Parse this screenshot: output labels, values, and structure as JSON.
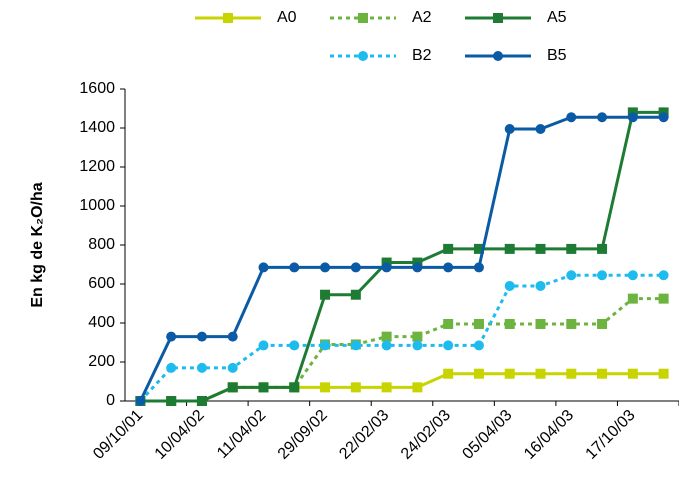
{
  "chart_data": {
    "type": "line",
    "y_label": "En kg de K₂O/ha",
    "categories": [
      "09/10/01",
      null,
      "10/04/02",
      null,
      "11/04/02",
      null,
      "29/09/02",
      null,
      "22/02/03",
      null,
      "24/02/03",
      null,
      "05/04/03",
      null,
      "16/04/03",
      null,
      "17/10/03",
      null
    ],
    "ylim": [
      0,
      1600
    ],
    "yticks": [
      0,
      200,
      400,
      600,
      800,
      1000,
      1200,
      1400,
      1600
    ],
    "series": [
      {
        "name": "A0",
        "color": "#c8d400",
        "marker": "square",
        "dashed": false,
        "values": [
          0,
          0,
          0,
          70,
          70,
          70,
          70,
          70,
          70,
          70,
          140,
          140,
          140,
          140,
          140,
          140,
          140,
          140
        ]
      },
      {
        "name": "A2",
        "color": "#6db33f",
        "marker": "square",
        "dashed": true,
        "values": [
          0,
          0,
          0,
          70,
          70,
          70,
          290,
          290,
          330,
          330,
          395,
          395,
          395,
          395,
          395,
          395,
          525,
          525
        ]
      },
      {
        "name": "A5",
        "color": "#1e7b34",
        "marker": "square",
        "dashed": false,
        "values": [
          0,
          0,
          0,
          70,
          70,
          70,
          545,
          545,
          710,
          710,
          780,
          780,
          780,
          780,
          780,
          780,
          1480,
          1480
        ]
      },
      {
        "name": "B2",
        "color": "#1ebbee",
        "marker": "circle",
        "dashed": true,
        "values": [
          0,
          170,
          170,
          170,
          285,
          285,
          285,
          285,
          285,
          285,
          285,
          285,
          590,
          590,
          645,
          645,
          645,
          645
        ]
      },
      {
        "name": "B5",
        "color": "#0b5aa5",
        "marker": "circle",
        "dashed": false,
        "values": [
          0,
          330,
          330,
          330,
          685,
          685,
          685,
          685,
          685,
          685,
          685,
          685,
          1395,
          1395,
          1455,
          1455,
          1455,
          1455
        ]
      }
    ]
  }
}
